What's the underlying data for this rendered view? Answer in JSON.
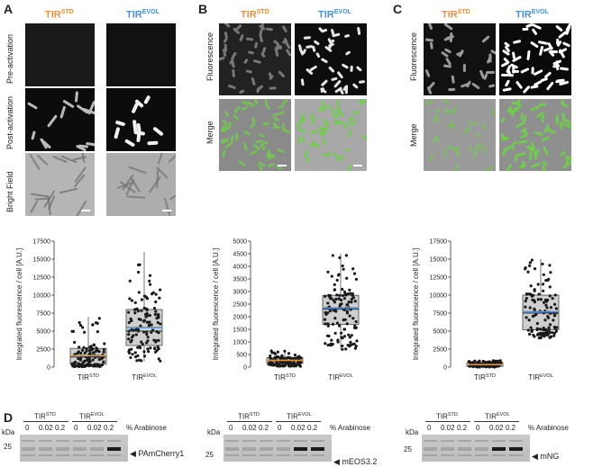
{
  "panels": {
    "A": {
      "letter": "A",
      "col1": {
        "base": "TIR",
        "sup": "STD"
      },
      "col2": {
        "base": "TIR",
        "sup": "EVOL"
      },
      "rows": [
        "Pre-activation",
        "Post-activation",
        "Bright Field"
      ]
    },
    "B": {
      "letter": "B",
      "col1": {
        "base": "TIR",
        "sup": "STD"
      },
      "col2": {
        "base": "TIR",
        "sup": "EVOL"
      },
      "rows": [
        "Fluorescence",
        "Merge"
      ]
    },
    "C": {
      "letter": "C",
      "col1": {
        "base": "TIR",
        "sup": "STD"
      },
      "col2": {
        "base": "TIR",
        "sup": "EVOL"
      },
      "rows": [
        "Fluorescence",
        "Merge"
      ]
    },
    "D": {
      "letter": "D",
      "kda": "kDa",
      "arabinose": "% Arabinose",
      "group1": {
        "base": "TIR",
        "sup": "STD"
      },
      "group2": {
        "base": "TIR",
        "sup": "EVOL"
      },
      "lanes": [
        "0",
        "0.02",
        "0.2",
        "0",
        "0.02",
        "0.2"
      ],
      "blots": [
        {
          "marker": "25",
          "protein": "PAmCherry1"
        },
        {
          "marker": "25",
          "protein": "mEOS3.2"
        },
        {
          "marker": "25",
          "protein": "mNG"
        }
      ]
    }
  },
  "colors": {
    "std": "#e0924a",
    "evol": "#4f8fcf",
    "mean": "#5b9bd5",
    "green": "#6fcf4a"
  },
  "chart_data": [
    {
      "type": "box",
      "ylabel": "Integrated fluorescence / cell [A.U.]",
      "ylim": [
        0,
        17500
      ],
      "yticks": [
        0,
        2500,
        5000,
        7500,
        10000,
        12500,
        15000,
        17500
      ],
      "categories": [
        {
          "base": "TIR",
          "sup": "STD"
        },
        {
          "base": "TIR",
          "sup": "EVOL"
        }
      ],
      "boxes": [
        {
          "q1": 400,
          "median": 1400,
          "q3": 2600,
          "mean": 1600,
          "min": 50,
          "max": 7000
        },
        {
          "q1": 3000,
          "median": 5000,
          "q3": 8000,
          "mean": 5500,
          "min": 800,
          "max": 16000
        }
      ]
    },
    {
      "type": "box",
      "ylabel": "Integrated fluorescence / cell [A.U.]",
      "ylim": [
        0,
        5000
      ],
      "yticks": [
        0,
        500,
        1000,
        1500,
        2000,
        2500,
        3000,
        3500,
        4000,
        4500,
        5000
      ],
      "categories": [
        {
          "base": "TIR",
          "sup": "STD"
        },
        {
          "base": "TIR",
          "sup": "EVOL"
        }
      ],
      "boxes": [
        {
          "q1": 150,
          "median": 250,
          "q3": 380,
          "mean": 270,
          "min": 30,
          "max": 700
        },
        {
          "q1": 1700,
          "median": 2300,
          "q3": 2850,
          "mean": 2350,
          "min": 700,
          "max": 4500
        }
      ]
    },
    {
      "type": "box",
      "ylabel": "Integrated fluorescence / cell [A.U.]",
      "ylim": [
        0,
        17500
      ],
      "yticks": [
        0,
        2500,
        5000,
        7500,
        10000,
        12500,
        15000,
        17500
      ],
      "categories": [
        {
          "base": "TIR",
          "sup": "STD"
        },
        {
          "base": "TIR",
          "sup": "EVOL"
        }
      ],
      "boxes": [
        {
          "q1": 100,
          "median": 300,
          "q3": 600,
          "mean": 350,
          "min": 10,
          "max": 900
        },
        {
          "q1": 5200,
          "median": 7500,
          "q3": 10000,
          "mean": 7700,
          "min": 4000,
          "max": 15000
        }
      ]
    }
  ]
}
